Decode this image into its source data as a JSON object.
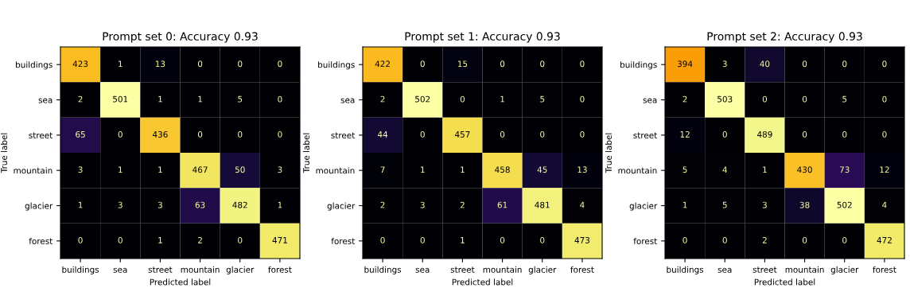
{
  "chart_data": [
    {
      "type": "heatmap",
      "title": "Prompt set 0: Accuracy 0.93",
      "xlabel": "Predicted label",
      "ylabel": "True label",
      "categories": [
        "buildings",
        "sea",
        "street",
        "mountain",
        "glacier",
        "forest"
      ],
      "y_categories": [
        "buildings",
        "sea",
        "street",
        "mountain",
        "glacier",
        "forest"
      ],
      "data_labels": true,
      "cells": [
        [
          423,
          1,
          13,
          0,
          0,
          0
        ],
        [
          2,
          501,
          1,
          1,
          5,
          0
        ],
        [
          65,
          0,
          436,
          0,
          0,
          0
        ],
        [
          3,
          1,
          1,
          467,
          50,
          3
        ],
        [
          1,
          3,
          3,
          63,
          482,
          1
        ],
        [
          0,
          0,
          1,
          2,
          0,
          471
        ]
      ]
    },
    {
      "type": "heatmap",
      "title": "Prompt set 1: Accuracy 0.93",
      "xlabel": "Predicted label",
      "ylabel": "True label",
      "categories": [
        "buildings",
        "sea",
        "street",
        "mountain",
        "glacier",
        "forest"
      ],
      "y_categories": [
        "buildings",
        "sea",
        "street",
        "mountain",
        "glacier",
        "forest"
      ],
      "data_labels": true,
      "cells": [
        [
          422,
          0,
          15,
          0,
          0,
          0
        ],
        [
          2,
          502,
          0,
          1,
          5,
          0
        ],
        [
          44,
          0,
          457,
          0,
          0,
          0
        ],
        [
          7,
          1,
          1,
          458,
          45,
          13
        ],
        [
          2,
          3,
          2,
          61,
          481,
          4
        ],
        [
          0,
          0,
          1,
          0,
          0,
          473
        ]
      ]
    },
    {
      "type": "heatmap",
      "title": "Prompt set 2: Accuracy 0.93",
      "xlabel": "Predicted label",
      "ylabel": "True label",
      "categories": [
        "buildings",
        "sea",
        "street",
        "mountain",
        "glacier",
        "forest"
      ],
      "y_categories": [
        "buildings",
        "sea",
        "street",
        "mountain",
        "glacier",
        "forest"
      ],
      "data_labels": true,
      "cells": [
        [
          394,
          3,
          40,
          0,
          0,
          0
        ],
        [
          2,
          503,
          0,
          0,
          5,
          0
        ],
        [
          12,
          0,
          489,
          0,
          0,
          0
        ],
        [
          5,
          4,
          1,
          430,
          73,
          12
        ],
        [
          1,
          5,
          3,
          38,
          502,
          4
        ],
        [
          0,
          0,
          2,
          0,
          0,
          472
        ]
      ]
    }
  ]
}
